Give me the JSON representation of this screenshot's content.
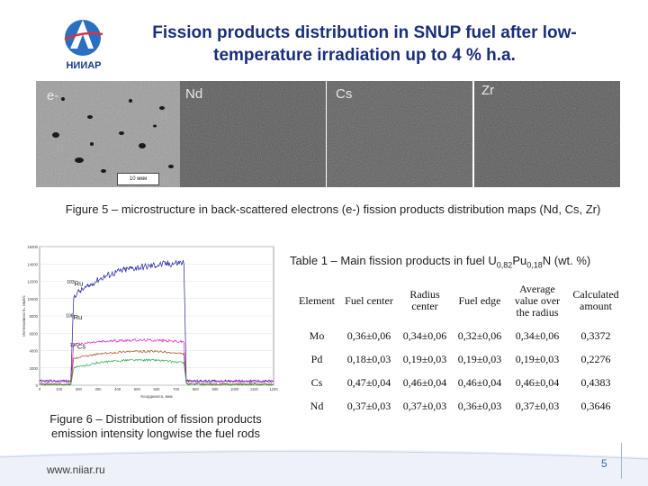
{
  "header": {
    "logo_text": "НИИАР",
    "title": "Fission products distribution in SNUP fuel after low-temperature irradiation up to 4 % h.a."
  },
  "micrographs": [
    {
      "label": "e-",
      "scale": "10 мкм"
    },
    {
      "label": "Nd"
    },
    {
      "label": "Cs"
    },
    {
      "label": "Zr"
    }
  ],
  "figure5_caption": "Figure 5 – microstructure in back-scattered electrons (e-) fission products distribution maps (Nd, Cs, Zr)",
  "chart_data": {
    "type": "line",
    "xlabel": "Координата, мкм",
    "ylabel": "Интенсивность, имп/с",
    "xlim": [
      0,
      1200
    ],
    "ylim": [
      0,
      16000
    ],
    "x_ticks": [
      "0",
      "100",
      "200",
      "300",
      "400",
      "500",
      "600",
      "700",
      "800",
      "900",
      "1000",
      "1100",
      "1200"
    ],
    "y_ticks": [
      "0",
      "2000",
      "4000",
      "6000",
      "8000",
      "10000",
      "12000",
      "14000",
      "16000"
    ],
    "series": [
      {
        "name": "103Ru",
        "sup": "103",
        "el": "Ru",
        "color": "#1c1ca0",
        "x": [
          0,
          160,
          175,
          200,
          250,
          300,
          350,
          400,
          450,
          500,
          550,
          600,
          650,
          700,
          740,
          752,
          760,
          1200
        ],
        "y": [
          500,
          500,
          10200,
          10800,
          11400,
          12200,
          12700,
          13100,
          13400,
          13600,
          13700,
          13900,
          14000,
          14100,
          14200,
          600,
          500,
          500
        ]
      },
      {
        "name": "106Ru",
        "sup": "106",
        "el": "Ru",
        "color": "#e020d0",
        "x": [
          0,
          160,
          175,
          300,
          450,
          600,
          740,
          752,
          760,
          1200
        ],
        "y": [
          400,
          400,
          4700,
          5000,
          5200,
          5200,
          5000,
          400,
          400,
          400
        ]
      },
      {
        "name": "137Cs",
        "sup": "137",
        "el": "Cs",
        "color": "#a05020",
        "x": [
          0,
          160,
          175,
          300,
          450,
          600,
          740,
          752,
          760,
          1200
        ],
        "y": [
          100,
          100,
          3100,
          3600,
          3900,
          3900,
          3600,
          200,
          100,
          100
        ]
      },
      {
        "name": "",
        "color": "#2aa84a",
        "x": [
          0,
          160,
          175,
          300,
          450,
          600,
          740,
          752,
          760,
          1200
        ],
        "y": [
          100,
          100,
          2000,
          2600,
          2900,
          2900,
          2600,
          300,
          100,
          100
        ]
      }
    ]
  },
  "figure6_caption": "Figure 6 – Distribution of fission products emission intensity longwise the fuel rods",
  "table1": {
    "caption_prefix": "Table 1 – Main fission products in fuel U",
    "sub1": "0,82",
    "mid": "Pu",
    "sub2": "0,18",
    "caption_suffix": "N (wt. %)",
    "headers": [
      "Element",
      "Fuel center",
      "Radius center",
      "Fuel edge",
      "Average value over the radius",
      "Calculated amount"
    ],
    "rows": [
      [
        "Mo",
        "0,36±0,06",
        "0,34±0,06",
        "0,32±0,06",
        "0,34±0,06",
        "0,3372"
      ],
      [
        "Pd",
        "0,18±0,03",
        "0,19±0,03",
        "0,19±0,03",
        "0,19±0,03",
        "0,2276"
      ],
      [
        "Cs",
        "0,47±0,04",
        "0,46±0,04",
        "0,46±0,04",
        "0,46±0,04",
        "0,4383"
      ],
      [
        "Nd",
        "0,37±0,03",
        "0,37±0,03",
        "0,36±0,03",
        "0,37±0,03",
        "0,3646"
      ]
    ]
  },
  "footer": {
    "url": "www.niiar.ru",
    "page": "5"
  }
}
